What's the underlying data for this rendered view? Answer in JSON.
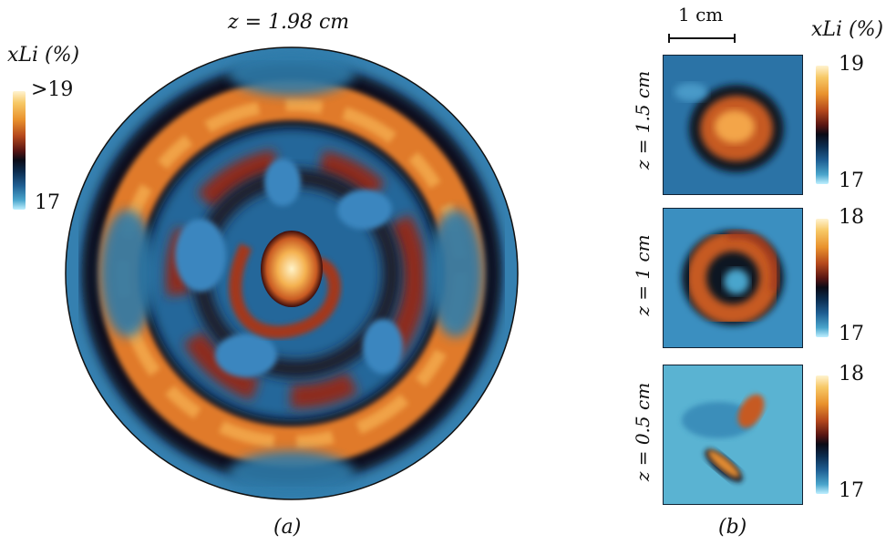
{
  "panel_a": {
    "title": "z = 1.98 cm",
    "colorbar": {
      "label": "xLi (%)",
      "max": ">19",
      "min": "17"
    },
    "caption": "(a)"
  },
  "panel_b": {
    "scalebar": "1 cm",
    "colorbar_label": "xLi (%)",
    "caption": "(b)",
    "slices": [
      {
        "z_label": "z = 1.5 cm",
        "max": "19",
        "min": "17"
      },
      {
        "z_label": "z = 1 cm",
        "max": "18",
        "min": "17"
      },
      {
        "z_label": "z = 0.5 cm",
        "max": "18",
        "min": "17"
      }
    ]
  },
  "colors": {
    "orange": "#e9922d",
    "red": "#b4471c",
    "dark": "#0b0b16",
    "blue": "#1f5f93",
    "cyan": "#4aa5cc"
  }
}
